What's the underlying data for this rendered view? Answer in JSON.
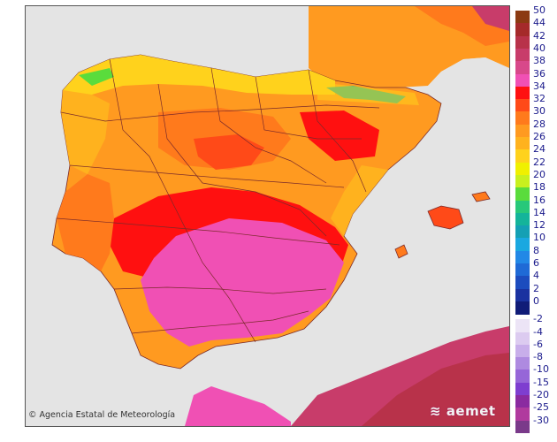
{
  "credit": {
    "symbol": "©",
    "text": "Agencia Estatal de Meteorología"
  },
  "logo": {
    "text": "aemet",
    "icon": "aemet-swirl-icon"
  },
  "legend": {
    "title": "",
    "entries": [
      {
        "label": "50",
        "color": "#8b3a12"
      },
      {
        "label": "44",
        "color": "#a52a2a"
      },
      {
        "label": "42",
        "color": "#b8324a"
      },
      {
        "label": "40",
        "color": "#c83c6a"
      },
      {
        "label": "38",
        "color": "#d8488a"
      },
      {
        "label": "36",
        "color": "#f050b4"
      },
      {
        "label": "34",
        "color": "#ff1010"
      },
      {
        "label": "32",
        "color": "#ff4a18"
      },
      {
        "label": "30",
        "color": "#ff7a1c"
      },
      {
        "label": "28",
        "color": "#ff9a20"
      },
      {
        "label": "26",
        "color": "#ffb21e"
      },
      {
        "label": "24",
        "color": "#ffd21c"
      },
      {
        "label": "22",
        "color": "#f0f000"
      },
      {
        "label": "20",
        "color": "#c8f01e"
      },
      {
        "label": "18",
        "color": "#5adc3c"
      },
      {
        "label": "16",
        "color": "#28c87a"
      },
      {
        "label": "14",
        "color": "#14b49a"
      },
      {
        "label": "12",
        "color": "#14a0b4"
      },
      {
        "label": "10",
        "color": "#1aa8e0"
      },
      {
        "label": "8",
        "color": "#2288e6"
      },
      {
        "label": "6",
        "color": "#1f6ad6"
      },
      {
        "label": "4",
        "color": "#1c4cbe"
      },
      {
        "label": "2",
        "color": "#1a32a0"
      },
      {
        "label": "0",
        "color": "#101c78"
      },
      {
        "label": "-2",
        "color": "#ece4f6"
      },
      {
        "label": "-4",
        "color": "#dccbf0"
      },
      {
        "label": "-6",
        "color": "#c8aeea"
      },
      {
        "label": "-8",
        "color": "#ae8ae0"
      },
      {
        "label": "-10",
        "color": "#9666d8"
      },
      {
        "label": "-15",
        "color": "#7e3ed0"
      },
      {
        "label": "-20",
        "color": "#8a2aa0"
      },
      {
        "label": "-25",
        "color": "#b03a9e"
      },
      {
        "label": "-30",
        "color": "#7a3a8a"
      }
    ]
  },
  "colors": {
    "sea": "#e4e4e4",
    "land_default": "#ff9a20",
    "border": "#7a2a2a"
  }
}
